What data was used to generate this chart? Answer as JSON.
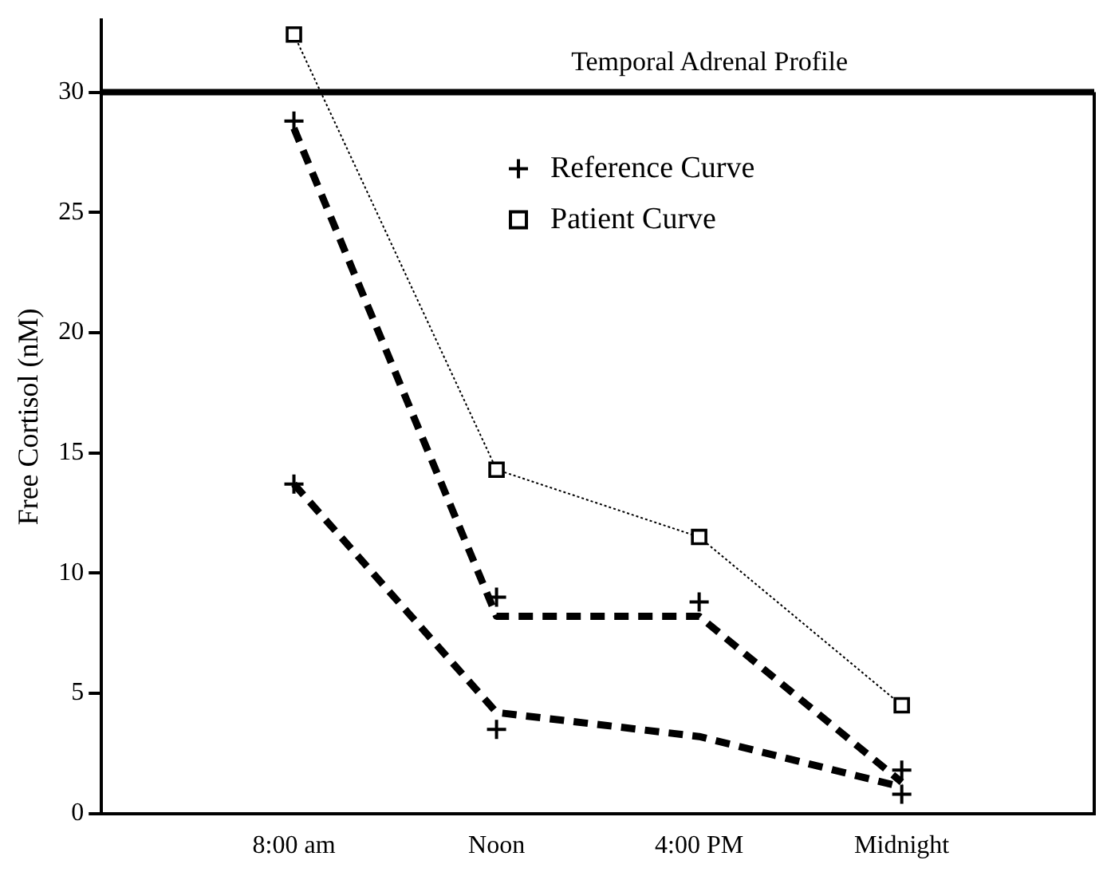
{
  "chart_data": {
    "type": "line",
    "title": "Temporal Adrenal Profile",
    "ylabel": "Free Cortisol (nM)",
    "categories": [
      "8:00 am",
      "Noon",
      "4:00 PM",
      "Midnight"
    ],
    "ylim": [
      0,
      33
    ],
    "yticks": [
      0,
      5,
      10,
      15,
      20,
      25,
      30
    ],
    "grid": false,
    "legend": "top right",
    "ref_lines": [
      {
        "axis": "y",
        "value": 30,
        "color": "#000000"
      }
    ],
    "series": [
      {
        "name": "Reference Curve",
        "type": "scatter",
        "color": "#000000",
        "marker": "cross",
        "x": [
          "8:00 am",
          "8:00 am",
          "Noon",
          "Noon",
          "4:00 PM",
          "Midnight",
          "Midnight"
        ],
        "values": [
          28.8,
          13.7,
          9.0,
          3.5,
          8.8,
          1.8,
          0.8
        ]
      },
      {
        "type": "line",
        "color": "#000000",
        "line_style": "dashed",
        "marker": "none",
        "values": [
          28.5,
          8.2,
          8.2,
          1.3
        ]
      },
      {
        "type": "line",
        "color": "#000000",
        "line_style": "dashed",
        "marker": "none",
        "values": [
          13.7,
          4.2,
          3.2,
          1.1
        ]
      },
      {
        "name": "Patient Curve",
        "type": "line",
        "color": "#000000",
        "line_style": "dotted",
        "marker": "square",
        "values": [
          32.4,
          14.3,
          11.5,
          4.5
        ]
      }
    ]
  }
}
